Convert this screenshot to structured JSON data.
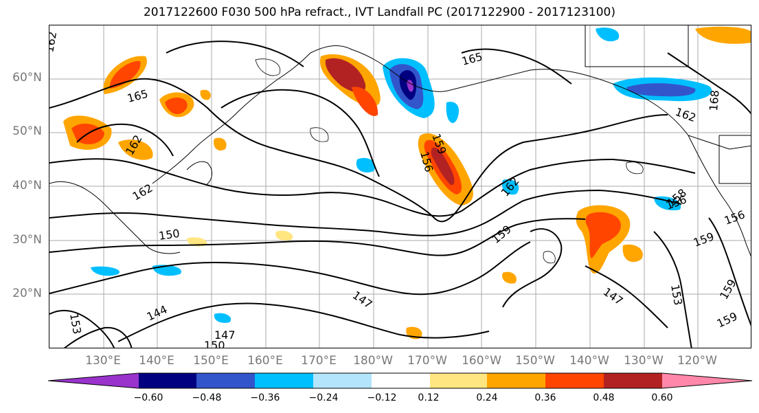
{
  "title": "2017122600 F030 500 hPa refract., IVT Landfall PC (2017122900 - 2017123100)",
  "lat_labels": [
    "60°N",
    "50°N",
    "40°N",
    "30°N",
    "20°N"
  ],
  "lon_labels": [
    "130°E",
    "140°E",
    "150°E",
    "160°E",
    "170°E",
    "180°W",
    "170°W",
    "160°W",
    "150°W",
    "140°W",
    "130°W",
    "120°W"
  ],
  "colorbar": {
    "ticks": [
      "−0.60",
      "−0.48",
      "−0.36",
      "−0.24",
      "−0.12",
      "0.12",
      "0.24",
      "0.36",
      "0.48",
      "0.60"
    ],
    "colors": [
      "#9933cc",
      "#000080",
      "#3355cc",
      "#00bfff",
      "#b3e5fc",
      "#ffffff",
      "#ffe680",
      "#ffa500",
      "#ff4500",
      "#b22222",
      "#ff88aa"
    ]
  },
  "contour_labels": [
    "162",
    "165",
    "165",
    "162",
    "168",
    "159",
    "156",
    "162",
    "153",
    "150",
    "147",
    "144",
    "147",
    "150",
    "159",
    "153",
    "156",
    "147",
    "153",
    "159",
    "159",
    "156",
    "159",
    "162",
    "158"
  ],
  "palette": {
    "pos_light": "#ffe680",
    "pos_mid": "#ffa500",
    "pos_strong": "#ff4500",
    "pos_max": "#b22222",
    "neg_light": "#b3e5fc",
    "neg_mid": "#00bfff",
    "neg_strong": "#3355cc",
    "neg_max": "#000080",
    "neg_peak": "#9933cc"
  }
}
